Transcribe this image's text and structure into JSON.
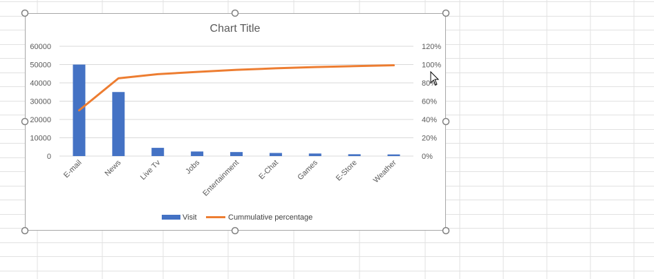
{
  "chart_data": {
    "type": "bar",
    "title": "Chart Title",
    "categories": [
      "E-mail",
      "News",
      "Live Tv",
      "Jobs",
      "Entertainment",
      "E-Chat",
      "Games",
      "E-Store",
      "Weather"
    ],
    "series": [
      {
        "name": "Visit",
        "type": "bar",
        "axis": "left",
        "color": "#4472c4",
        "values": [
          50000,
          35000,
          4500,
          2500,
          2200,
          1700,
          1400,
          1000,
          900
        ]
      },
      {
        "name": "Cummulative percentage",
        "type": "line",
        "axis": "right",
        "color": "#ed7d31",
        "values": [
          0.5,
          0.85,
          0.895,
          0.92,
          0.942,
          0.959,
          0.973,
          0.983,
          0.992
        ]
      }
    ],
    "y_left": {
      "ylim": [
        0,
        60000
      ],
      "ticks": [
        "0",
        "10000",
        "20000",
        "30000",
        "40000",
        "50000",
        "60000"
      ]
    },
    "y_right": {
      "ylim": [
        0,
        1.2
      ],
      "ticks": [
        "0%",
        "20%",
        "40%",
        "60%",
        "80%",
        "100%",
        "120%"
      ]
    },
    "grid": true,
    "legend": "bottom"
  }
}
